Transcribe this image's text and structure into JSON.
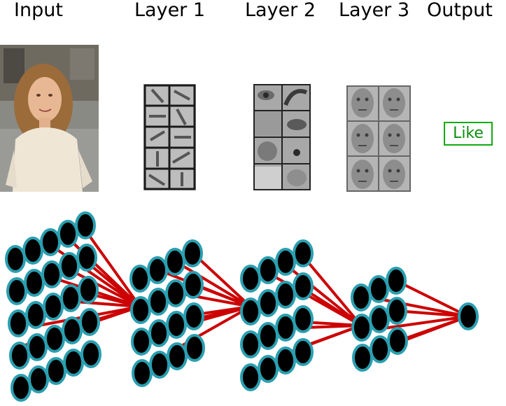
{
  "headers": {
    "input": "Input",
    "layer1": "Layer 1",
    "layer2": "Layer 2",
    "layer3": "Layer 3",
    "output": "Output"
  },
  "output_label": "Like",
  "colors": {
    "node_fill": "#000000",
    "node_stroke": "#2a9fb0",
    "edge": "#cc0000",
    "like_box": "#11aa11"
  }
}
